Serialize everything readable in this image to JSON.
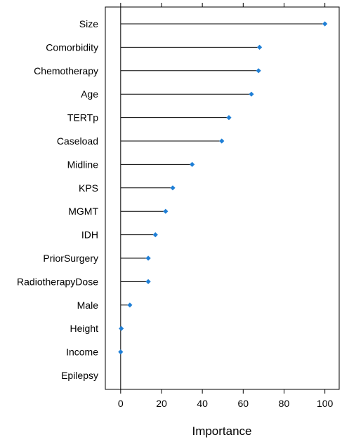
{
  "chart_data": {
    "type": "dot",
    "title": "",
    "xlabel": "Importance",
    "ylabel": "",
    "xlim": [
      -7.5,
      107
    ],
    "xticks": [
      0,
      20,
      40,
      60,
      80,
      100
    ],
    "xtick_labels": [
      "0",
      "20",
      "40",
      "60",
      "80",
      "100"
    ],
    "grid": false,
    "marker_color": "#1f7fd6",
    "categories": [
      "Size",
      "Comorbidity",
      "Chemotherapy",
      "Age",
      "TERTp",
      "Caseload",
      "Midline",
      "KPS",
      "MGMT",
      "IDH",
      "PriorSurgery",
      "RadiotherapyDose",
      "Male",
      "Height",
      "Income",
      "Epilepsy"
    ],
    "values": [
      100,
      68,
      67.5,
      64,
      53,
      49.5,
      35,
      25.5,
      22,
      17,
      13.5,
      13.5,
      4.5,
      0.3,
      0,
      null
    ]
  }
}
